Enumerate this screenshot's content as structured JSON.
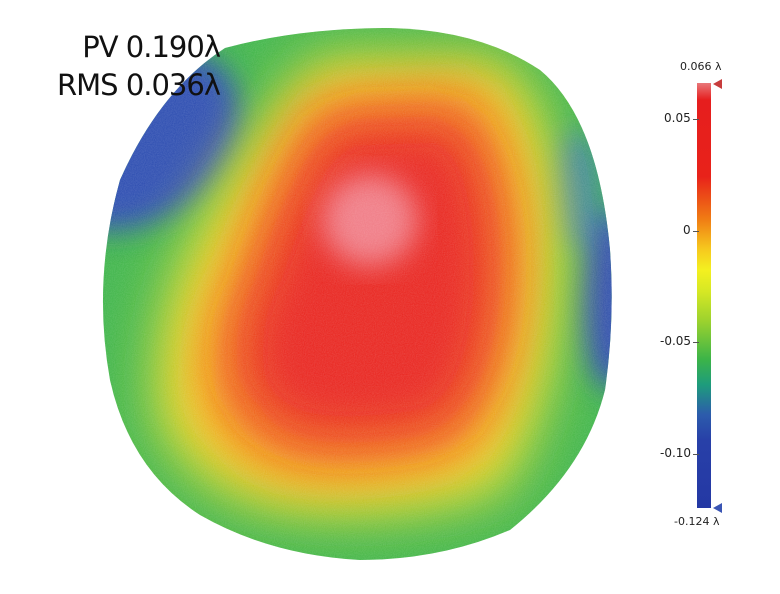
{
  "stats": {
    "pv": "PV 0.190λ",
    "rms": "RMS 0.036λ"
  },
  "colorbar": {
    "max_label": "0.066 λ",
    "min_label": "-0.124 λ",
    "max_value": 0.066,
    "min_value": -0.124,
    "ticks": [
      {
        "value": 0.05,
        "label": "0.05"
      },
      {
        "value": 0,
        "label": "0"
      },
      {
        "value": -0.05,
        "label": "-0.05"
      },
      {
        "value": -0.1,
        "label": "-0.10"
      }
    ],
    "colors": {
      "top": "#e8787a",
      "high": "#e61e1e",
      "mid_high": "#f07c14",
      "zero": "#f4f020",
      "mid_low": "#3cb448",
      "low": "#2438a4"
    }
  }
}
